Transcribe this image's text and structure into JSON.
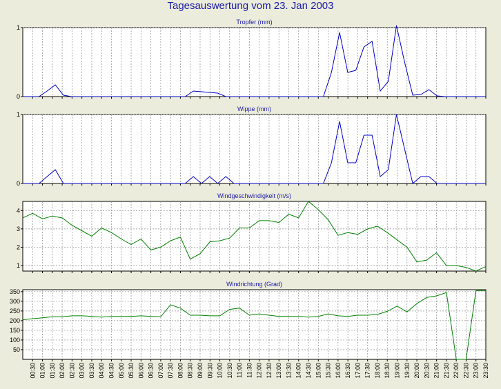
{
  "title": "Tagesauswertung vom 23. Jan 2003",
  "colors": {
    "background": "#ececdc",
    "title": "#1a1aa8",
    "rain": "#0000c8",
    "wind": "#008000",
    "grid": "#8c8c8c"
  },
  "chart_data": [
    {
      "type": "line",
      "title": "Tropfer (mm)",
      "ylim": [
        0,
        1
      ],
      "yticks": [
        "0",
        "1"
      ],
      "series": [
        {
          "values": [
            0,
            0,
            0,
            0.08,
            0.17,
            0.02,
            0,
            0,
            0,
            0,
            0,
            0,
            0,
            0,
            0,
            0,
            0,
            0,
            0,
            0,
            0,
            0.08,
            0.07,
            0.06,
            0.05,
            0,
            0,
            0,
            0,
            0,
            0,
            0,
            0,
            0,
            0,
            0,
            0,
            0,
            0.35,
            0.93,
            0.35,
            0.38,
            0.72,
            0.8,
            0.08,
            0.22,
            1.03,
            0.5,
            0.02,
            0.03,
            0.1,
            0.01,
            0,
            0,
            0,
            0,
            0,
            0
          ]
        }
      ]
    },
    {
      "type": "line",
      "title": "Wippe (mm)",
      "ylim": [
        0,
        1
      ],
      "yticks": [
        "0",
        "1"
      ],
      "series": [
        {
          "values": [
            0,
            0,
            0,
            0.1,
            0.2,
            0,
            0,
            0,
            0,
            0,
            0,
            0,
            0,
            0,
            0,
            0,
            0,
            0,
            0,
            0,
            0,
            0.1,
            0,
            0.1,
            0,
            0.1,
            0,
            0,
            0,
            0,
            0,
            0,
            0,
            0,
            0,
            0,
            0,
            0,
            0.3,
            0.9,
            0.3,
            0.3,
            0.7,
            0.7,
            0.1,
            0.2,
            1.0,
            0.5,
            0,
            0.1,
            0.1,
            0,
            0,
            0,
            0,
            0,
            0,
            0
          ]
        }
      ]
    },
    {
      "type": "line",
      "title": "Windgeschwindigkeit (m/s)",
      "ylim": [
        0.7,
        4.5
      ],
      "yticks": [
        "1",
        "2",
        "3",
        "4"
      ],
      "series": [
        {
          "values": [
            3.6,
            3.85,
            3.55,
            3.7,
            3.6,
            3.2,
            2.9,
            2.6,
            3.05,
            2.8,
            2.45,
            2.15,
            2.45,
            1.85,
            2.0,
            2.35,
            2.55,
            1.35,
            1.65,
            2.3,
            2.35,
            2.5,
            3.05,
            3.05,
            3.45,
            3.45,
            3.35,
            3.8,
            3.6,
            4.5,
            4.05,
            3.5,
            2.65,
            2.8,
            2.7,
            3.0,
            3.15,
            2.8,
            2.4,
            2.0,
            1.2,
            1.3,
            1.7,
            1.0,
            1.0,
            0.9,
            0.7,
            0.95
          ]
        }
      ]
    },
    {
      "type": "line",
      "title": "Windrichtung (Grad)",
      "ylim": [
        0,
        360
      ],
      "yticks": [
        "50",
        "100",
        "150",
        "200",
        "250",
        "300",
        "350"
      ],
      "series": [
        {
          "values": [
            205,
            210,
            215,
            220,
            220,
            225,
            225,
            222,
            218,
            222,
            222,
            222,
            225,
            222,
            220,
            282,
            265,
            228,
            228,
            225,
            225,
            258,
            265,
            228,
            235,
            228,
            222,
            222,
            222,
            218,
            222,
            235,
            225,
            222,
            228,
            228,
            232,
            248,
            275,
            245,
            288,
            320,
            328,
            345,
            0,
            0,
            355,
            355
          ]
        }
      ]
    }
  ],
  "xticks": [
    "00:30",
    "01:00",
    "01:30",
    "02:00",
    "02:30",
    "03:00",
    "03:30",
    "04:00",
    "04:30",
    "05:00",
    "05:30",
    "06:00",
    "06:30",
    "07:00",
    "07:30",
    "08:00",
    "08:30",
    "09:00",
    "09:30",
    "10:00",
    "10:30",
    "11:00",
    "11:30",
    "12:00",
    "12:30",
    "13:00",
    "13:30",
    "14:00",
    "14:30",
    "15:00",
    "15:30",
    "16:00",
    "16:30",
    "17:00",
    "17:30",
    "18:00",
    "18:30",
    "19:00",
    "19:30",
    "20:00",
    "20:30",
    "21:00",
    "21:30",
    "22:00",
    "22:30",
    "23:00",
    "23:30"
  ]
}
